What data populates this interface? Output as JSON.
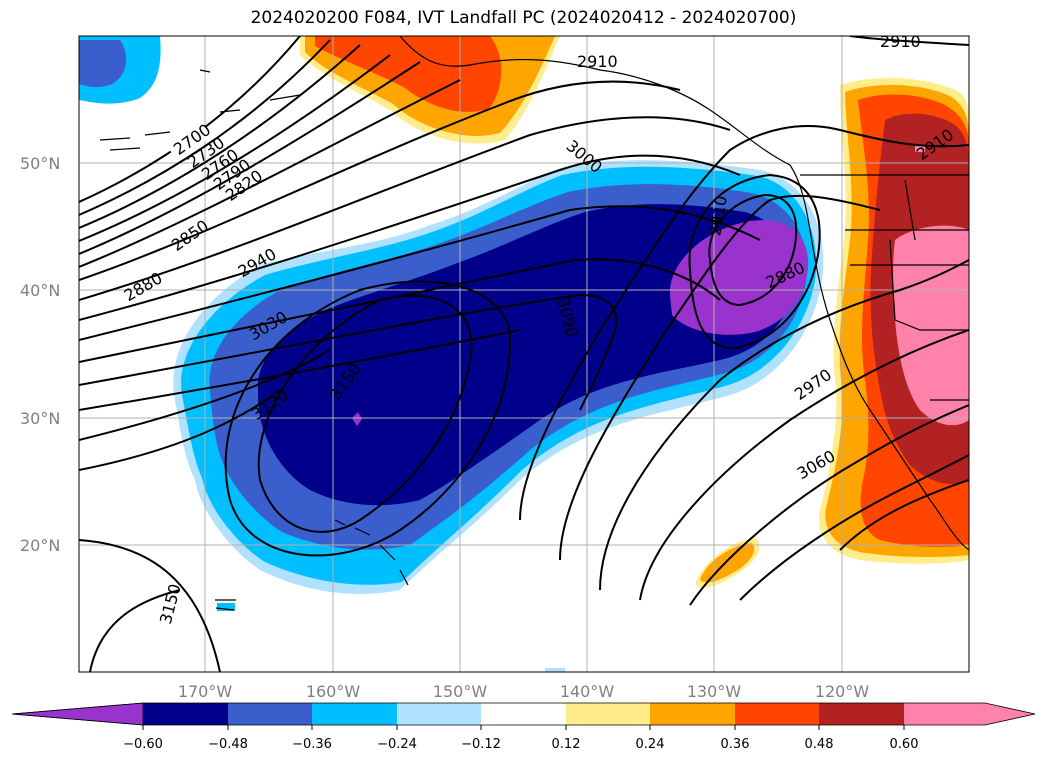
{
  "title": "2024020200 F084, IVT Landfall PC (2024020412 - 2024020700)",
  "map": {
    "lat_labels": [
      "50°N",
      "40°N",
      "30°N",
      "20°N"
    ],
    "lon_labels": [
      "170°W",
      "160°W",
      "150°W",
      "140°W",
      "130°W",
      "120°W"
    ],
    "contour_labels": [
      "2700",
      "2730",
      "2760",
      "2790",
      "2820",
      "2850",
      "2880",
      "2940",
      "3030",
      "3120",
      "3150",
      "3090",
      "3000",
      "2910",
      "2910",
      "2910",
      "2880",
      "2970",
      "3060",
      "3150",
      "2910"
    ]
  },
  "colorbar": {
    "ticks": [
      "−0.60",
      "−0.48",
      "−0.36",
      "−0.24",
      "−0.12",
      "0.12",
      "0.24",
      "0.36",
      "0.48",
      "0.60"
    ],
    "colors": [
      "#9a32cd",
      "#00008b",
      "#3a5fcd",
      "#00bfff",
      "#b0e2ff",
      "#ffffff",
      "#ffec8b",
      "#ffa500",
      "#ff4500",
      "#b22222",
      "#ff82ab",
      "#ff82ab"
    ]
  }
}
